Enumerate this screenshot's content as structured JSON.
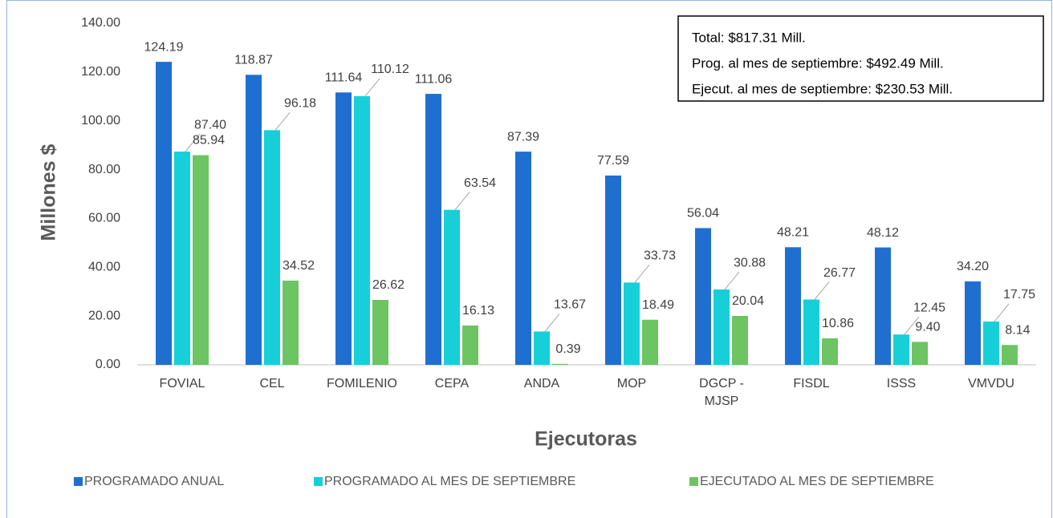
{
  "chart_data": {
    "type": "bar",
    "categories": [
      "FOVIAL",
      "CEL",
      "FOMILENIO",
      "CEPA",
      "ANDA",
      "MOP",
      "DGCP - MJSP",
      "FISDL",
      "ISSS",
      "VMVDU"
    ],
    "series": [
      {
        "name": "PROGRAMADO ANUAL",
        "color": "#1f6fd0",
        "values": [
          124.19,
          118.87,
          111.64,
          111.06,
          87.39,
          77.59,
          56.04,
          48.21,
          48.12,
          34.2
        ],
        "value_labels": [
          "124.19",
          "118.87",
          "111.64",
          "111.06",
          "87.39",
          "77.59",
          "56.04",
          "48.21",
          "48.12",
          "34.20"
        ]
      },
      {
        "name": "PROGRAMADO AL MES DE SEPTIEMBRE",
        "color": "#17cfd8",
        "values": [
          87.4,
          96.18,
          110.12,
          63.54,
          13.67,
          33.73,
          30.88,
          26.77,
          12.45,
          17.75
        ],
        "value_labels": [
          "87.40",
          "96.18",
          "110.12",
          "63.54",
          "13.67",
          "33.73",
          "30.88",
          "26.77",
          "12.45",
          "17.75"
        ]
      },
      {
        "name": "EJECUTADO AL MES DE SEPTIEMBRE",
        "color": "#6cc462",
        "values": [
          85.94,
          34.52,
          26.62,
          16.13,
          0.39,
          18.49,
          20.04,
          10.86,
          9.4,
          8.14
        ],
        "value_labels": [
          "85.94",
          "34.52",
          "26.62",
          "16.13",
          "0.39",
          "18.49",
          "20.04",
          "10.86",
          "9.40",
          "8.14"
        ]
      }
    ],
    "ylim": [
      0,
      140
    ],
    "yticks": [
      {
        "value": 0,
        "label": "0.00"
      },
      {
        "value": 20,
        "label": "20.00"
      },
      {
        "value": 40,
        "label": "40.00"
      },
      {
        "value": 60,
        "label": "60.00"
      },
      {
        "value": 80,
        "label": "80.00"
      },
      {
        "value": 100,
        "label": "100.00"
      },
      {
        "value": 120,
        "label": "120.00"
      },
      {
        "value": 140,
        "label": "140.00"
      }
    ],
    "y_label": "Millones $",
    "x_label": "Ejecutoras",
    "annotations": [
      "Total: $817.31 Mill.",
      "Prog. al mes de septiembre: $492.49 Mill.",
      "Ejecut. al mes de septiembre: $230.53 Mill."
    ],
    "grid": false,
    "legend": "bottom"
  }
}
